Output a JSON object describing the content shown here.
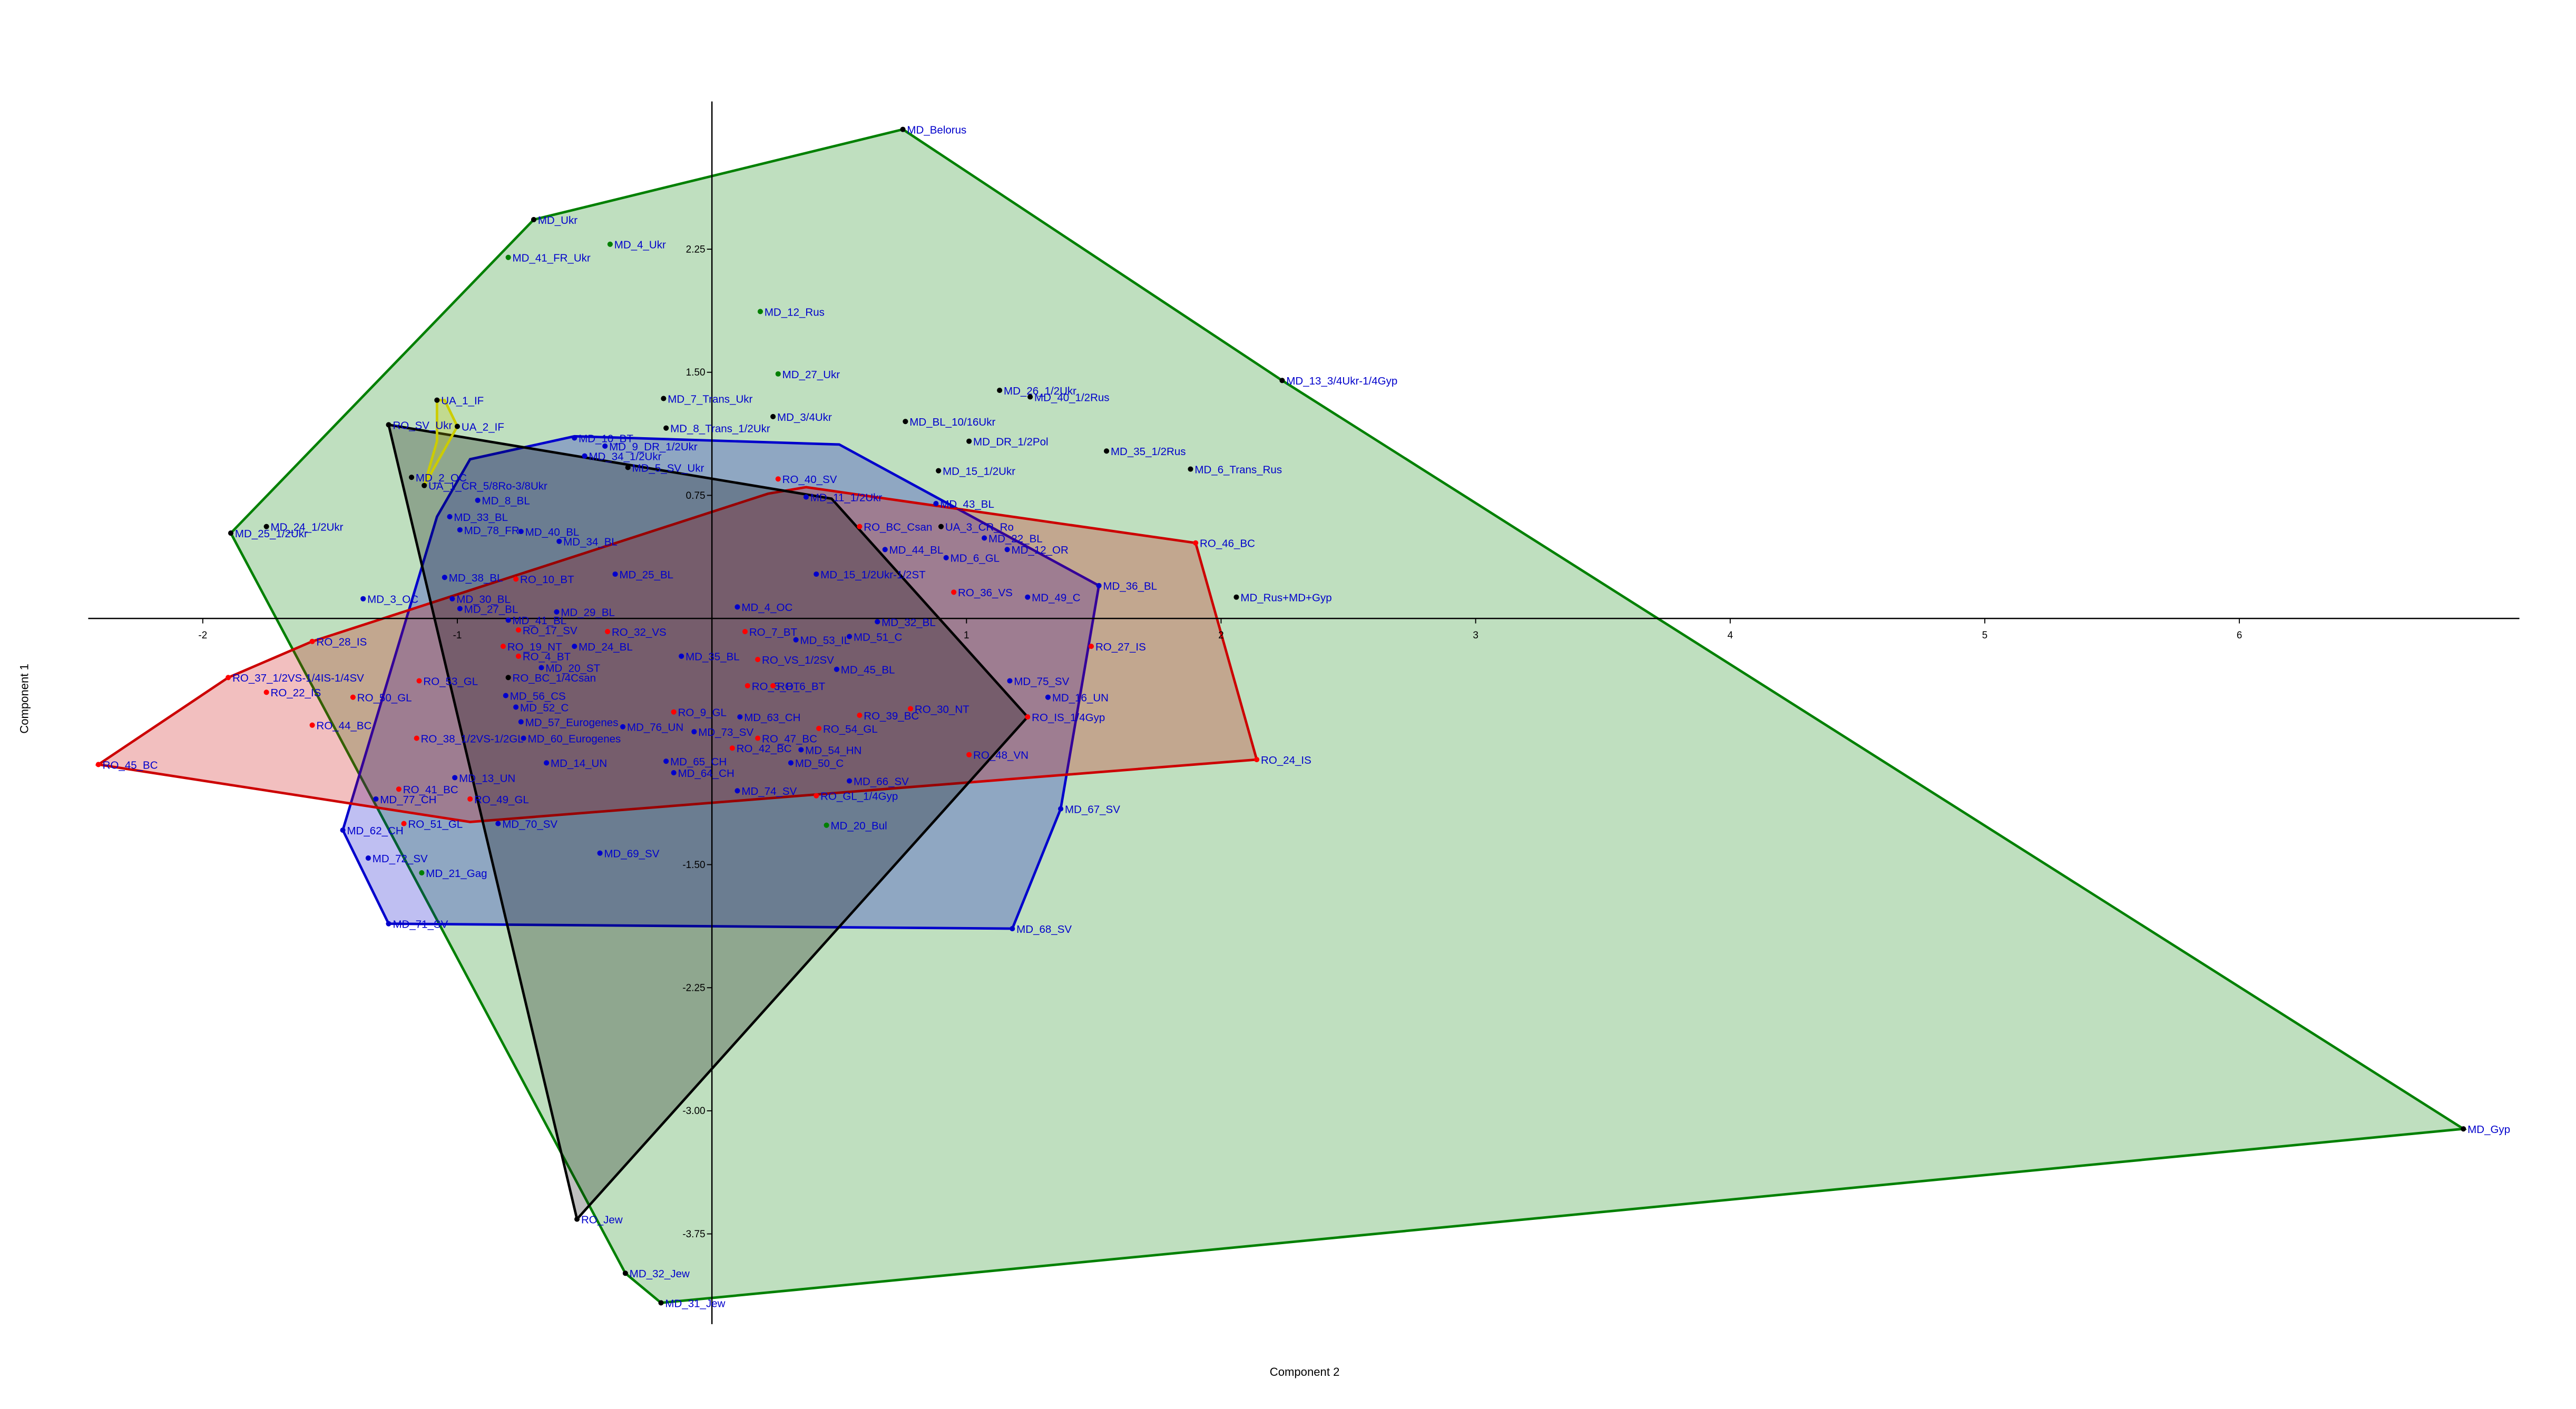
{
  "chart_data": {
    "type": "scatter",
    "xlabel": "Component 2",
    "ylabel": "Component 1",
    "xlim": [
      -2.45,
      7.1
    ],
    "ylim": [
      -4.3,
      3.15
    ],
    "xticks": [
      -2,
      -1,
      1,
      2,
      3,
      4,
      5,
      6
    ],
    "yticks": [
      2.25,
      {
        "value": 1.5,
        "label": "1.50"
      },
      0.75,
      {
        "value": -1.5,
        "label": "-1.50"
      },
      -2.25,
      {
        "value": -3,
        "label": "-3.00"
      },
      -3.75
    ],
    "xgrid": [
      -2,
      -1,
      0,
      1,
      2,
      3,
      4,
      5,
      6,
      7
    ],
    "ygrid": [
      -4,
      -3,
      -2,
      -1,
      0,
      1,
      2,
      3
    ],
    "label_color": "#0000cc",
    "hull_opacity": 0.25,
    "hulls": [
      {
        "color": "#008000",
        "x": [
          0.75,
          2.24,
          6.88,
          -0.2,
          -0.34,
          -1.89,
          -0.7
        ],
        "y": [
          2.98,
          1.45,
          -3.11,
          -4.17,
          -3.99,
          0.52,
          2.43
        ]
      },
      {
        "color": "#0000cc",
        "x": [
          -1.08,
          -0.95,
          -0.54,
          0.5,
          1.52,
          1.37,
          1.18,
          -1.27,
          -1.45
        ],
        "y": [
          0.62,
          0.97,
          1.11,
          1.06,
          0.2,
          -1.16,
          -1.89,
          -1.86,
          -1.29
        ]
      },
      {
        "color": "#cc0000",
        "x": [
          -2.41,
          -1.9,
          -1.57,
          0.22,
          0.37,
          1.9,
          2.14,
          -0.95
        ],
        "y": [
          -0.89,
          -0.36,
          -0.14,
          0.76,
          0.8,
          0.46,
          -0.86,
          -1.24
        ]
      },
      {
        "color": "#000000",
        "x": [
          -1.27,
          0.47,
          1.24,
          -0.53
        ],
        "y": [
          1.18,
          0.73,
          -0.6,
          -3.66
        ]
      },
      {
        "color": "#cccc00",
        "x": [
          -1.08,
          -1.05,
          -1,
          -1.13,
          -1.08
        ],
        "y": [
          1.33,
          1.33,
          1.17,
          0.81,
          1.08
        ]
      }
    ],
    "series": [
      {
        "color": "#000000",
        "labels": [
          "MD_Belorus",
          "MD_Ukr",
          "MD_13_3/4Ukr-1/4Gyp",
          "MD_7_Trans_Ukr",
          "MD_26_1/2Ukr",
          "MD_40_1/2Rus",
          "MD_3/4Ukr",
          "MD_BL_10/16Ukr",
          "MD_8_Trans_1/2Ukr",
          "MD_DR_1/2Pol",
          "MD_35_1/2Rus",
          "MD_6_Trans_Rus",
          "MD_15_1/2Ukr",
          "UA_1_IF",
          "UA_2_IF",
          "RO_SV_Ukr",
          "MD_2_OC",
          "UA_1_CR_5/8Ro-3/8Ukr",
          "MD_24_1/2Ukr",
          "MD_25_1/2Ukr",
          "MD_5_SV_Ukr",
          "UA_3_CR_Ro",
          "MD_Rus+MD+Gyp",
          "RO_BC_1/4Csan",
          "RO_Jew",
          "MD_32_Jew",
          "MD_31_Jew",
          "MD_Gyp"
        ],
        "x": [
          0.75,
          -0.7,
          2.24,
          -0.19,
          1.13,
          1.25,
          0.24,
          0.76,
          -0.18,
          1.01,
          1.55,
          1.88,
          0.89,
          -1.08,
          -1,
          -1.27,
          -1.18,
          -1.13,
          -1.75,
          -1.89,
          -0.33,
          0.9,
          2.06,
          -0.8,
          -0.53,
          -0.34,
          -0.2,
          6.88
        ],
        "y": [
          2.98,
          2.43,
          1.45,
          1.34,
          1.39,
          1.35,
          1.23,
          1.2,
          1.16,
          1.08,
          1.02,
          0.91,
          0.9,
          1.33,
          1.17,
          1.18,
          0.86,
          0.81,
          0.56,
          0.52,
          0.92,
          0.56,
          0.13,
          -0.36,
          -3.66,
          -3.99,
          -4.17,
          -3.11
        ]
      },
      {
        "color": "#008000",
        "labels": [
          "MD_4_Ukr",
          "MD_41_FR_Ukr",
          "MD_12_Rus",
          "MD_27_Ukr",
          "MD_20_Bul",
          "MD_21_Gag"
        ],
        "x": [
          -0.4,
          -0.8,
          0.19,
          0.26,
          0.45,
          -1.14
        ],
        "y": [
          2.28,
          2.2,
          1.87,
          1.49,
          -1.26,
          -1.55
        ]
      },
      {
        "color": "#ff0000",
        "labels": [
          "RO_46_BC",
          "RO_40_SV",
          "RO_BC_Csan",
          "RO_36_VS",
          "RO_10_BT",
          "RO_17_SV",
          "RO_32_VS",
          "RO_7_BT",
          "RO_27_IS",
          "RO_28_IS",
          "RO_19_NT",
          "RO_4_BT",
          "RO_VS_1/2SV",
          "RO_5_BT",
          "RO_6_BT",
          "RO_37_1/2VS-1/4IS-1/4SV",
          "RO_22_IS",
          "RO_50_GL",
          "RO_53_GL",
          "RO_IS_1/4Gyp",
          "RO_30_NT",
          "RO_39_BC",
          "RO_44_BC",
          "RO_38_1/2VS-1/2GL",
          "RO_9_GL",
          "RO_54_GL",
          "RO_47_BC",
          "RO_42_BC",
          "RO_45_BC",
          "RO_24_IS",
          "RO_48_VN",
          "RO_GL_1/4Gyp",
          "RO_41_BC",
          "RO_49_GL",
          "RO_51_GL"
        ],
        "x": [
          1.9,
          0.26,
          0.58,
          0.95,
          -0.77,
          -0.76,
          -0.41,
          0.13,
          1.49,
          -1.57,
          -0.82,
          -0.76,
          0.18,
          0.14,
          0.24,
          -1.9,
          -1.75,
          -1.41,
          -1.15,
          1.24,
          0.78,
          0.58,
          -1.57,
          -1.16,
          -0.15,
          0.42,
          0.18,
          0.08,
          -2.41,
          2.14,
          1.01,
          0.41,
          -1.23,
          -0.95,
          -1.21
        ],
        "y": [
          0.46,
          0.85,
          0.56,
          0.16,
          0.24,
          -0.07,
          -0.08,
          -0.08,
          -0.17,
          -0.14,
          -0.17,
          -0.23,
          -0.25,
          -0.41,
          -0.41,
          -0.36,
          -0.45,
          -0.48,
          -0.38,
          -0.6,
          -0.55,
          -0.59,
          -0.65,
          -0.73,
          -0.57,
          -0.67,
          -0.73,
          -0.79,
          -0.89,
          -0.86,
          -0.83,
          -1.08,
          -1.04,
          -1.1,
          -1.25
        ]
      },
      {
        "color": "#0000cc",
        "labels": [
          "MD_10_BT",
          "MD_9_DR_1/2Ukr",
          "MD_34_1/2Ukr",
          "MD_8_BL",
          "MD_33_BL",
          "MD_78_FR",
          "MD_40_BL",
          "MD_34_BL",
          "MD_11_1/2Ukr",
          "MD_43_BL",
          "MD_22_BL",
          "MD_12_OR",
          "MD_44_BL",
          "MD_6_GL",
          "MD_36_BL",
          "MD_49_C",
          "MD_15_1/2Ukr-1/2ST",
          "MD_38_BL",
          "MD_3_OC",
          "MD_30_BL",
          "MD_27_BL",
          "MD_29_BL",
          "MD_25_BL",
          "MD_4_OC",
          "MD_41_BL",
          "MD_53_IL",
          "MD_51_C",
          "MD_32_BL",
          "MD_24_BL",
          "MD_20_ST",
          "MD_35_BL",
          "MD_45_BL",
          "MD_56_CS",
          "MD_75_SV",
          "MD_16_UN",
          "MD_52_C",
          "MD_57_Eurogenes",
          "MD_60_Eurogenes",
          "MD_63_CH",
          "MD_76_UN",
          "MD_73_SV",
          "MD_54_HN",
          "MD_14_UN",
          "MD_65_CH",
          "MD_50_C",
          "MD_64_CH",
          "MD_13_UN",
          "MD_66_SV",
          "MD_74_SV",
          "MD_77_CH",
          "MD_67_SV",
          "MD_70_SV",
          "MD_62_CH",
          "MD_69_SV",
          "MD_72_SV",
          "MD_71_SV",
          "MD_68_SV"
        ],
        "x": [
          -0.54,
          -0.42,
          -0.5,
          -0.92,
          -1.03,
          -0.99,
          -0.75,
          -0.6,
          0.37,
          0.88,
          1.07,
          1.16,
          0.68,
          0.92,
          1.52,
          1.24,
          0.41,
          -1.05,
          -1.37,
          -1.02,
          -0.99,
          -0.61,
          -0.38,
          0.1,
          -0.8,
          0.33,
          0.54,
          0.65,
          -0.54,
          -0.67,
          -0.12,
          0.49,
          -0.81,
          1.17,
          1.32,
          -0.77,
          -0.75,
          -0.74,
          0.11,
          -0.35,
          -0.07,
          0.35,
          -0.65,
          -0.18,
          0.31,
          -0.15,
          -1.01,
          0.54,
          0.1,
          -1.32,
          1.37,
          -0.84,
          -1.45,
          -0.44,
          -1.35,
          -1.27,
          1.18
        ],
        "y": [
          1.1,
          1.05,
          0.99,
          0.72,
          0.62,
          0.54,
          0.53,
          0.47,
          0.74,
          0.7,
          0.49,
          0.42,
          0.42,
          0.37,
          0.2,
          0.13,
          0.27,
          0.25,
          0.12,
          0.12,
          0.06,
          0.04,
          0.27,
          0.07,
          -0.01,
          -0.13,
          -0.11,
          -0.02,
          -0.17,
          -0.3,
          -0.23,
          -0.31,
          -0.47,
          -0.38,
          -0.48,
          -0.54,
          -0.63,
          -0.73,
          -0.6,
          -0.66,
          -0.69,
          -0.8,
          -0.88,
          -0.87,
          -0.88,
          -0.94,
          -0.97,
          -0.99,
          -1.05,
          -1.1,
          -1.16,
          -1.25,
          -1.29,
          -1.43,
          -1.46,
          -1.86,
          -1.89
        ]
      }
    ]
  }
}
